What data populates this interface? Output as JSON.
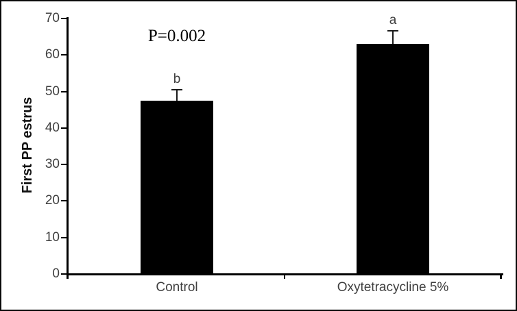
{
  "window": {
    "background": "#ffffff",
    "frame_border_color": "#0a0a0a"
  },
  "chart_data": {
    "type": "bar",
    "title": "",
    "xlabel": "",
    "ylabel": "First PP estrus",
    "categories": [
      "Control",
      "Oxytetracycline 5%"
    ],
    "values": [
      47.5,
      63
    ],
    "error_bars_plus": [
      3,
      3.7
    ],
    "significance_letters": [
      "b",
      "a"
    ],
    "annotation": "P=0.002",
    "ylim": [
      0,
      70
    ],
    "yticks": [
      0,
      10,
      20,
      30,
      40,
      50,
      60,
      70
    ],
    "grid": false,
    "legend": false,
    "bar_color": "#000000",
    "axis_color": "#000000",
    "tick_label_color": "#3f3f3f"
  }
}
